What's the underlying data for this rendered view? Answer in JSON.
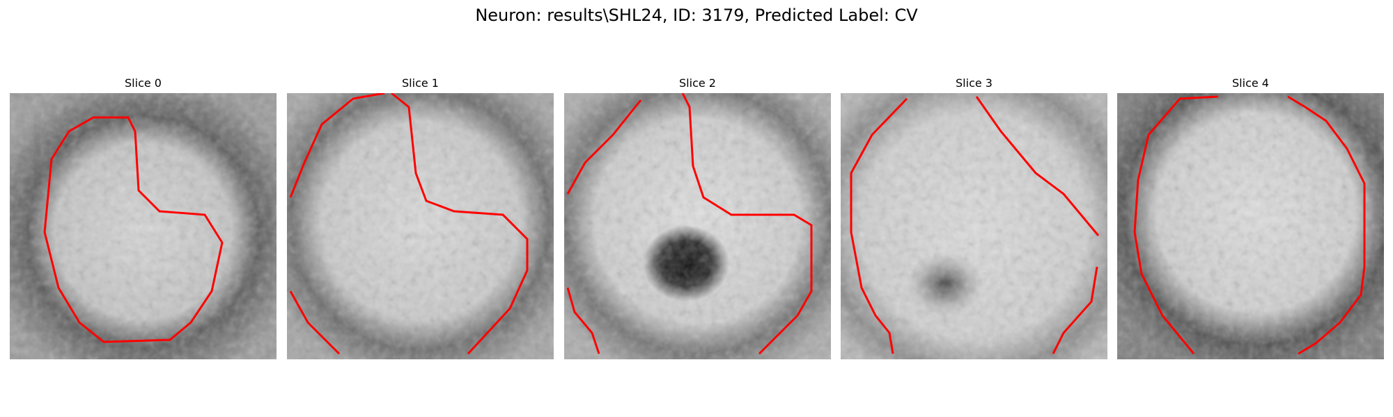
{
  "figure": {
    "title": "Neuron: results\\SHL24, ID: 3179, Predicted Label: CV"
  },
  "slices": [
    {
      "label": "Slice 0"
    },
    {
      "label": "Slice 1"
    },
    {
      "label": "Slice 2"
    },
    {
      "label": "Slice 3"
    },
    {
      "label": "Slice 4"
    }
  ],
  "colors": {
    "contour": "#ff0000",
    "background": "#ffffff"
  }
}
